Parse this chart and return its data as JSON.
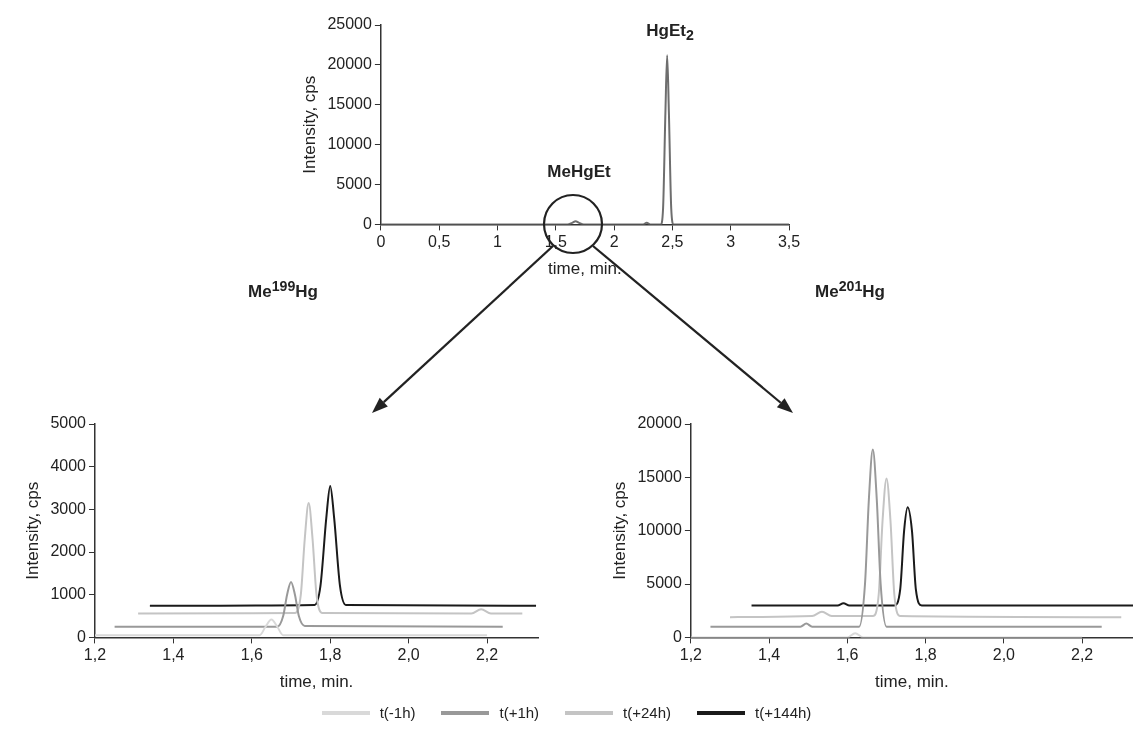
{
  "chart_data": [
    {
      "type": "line",
      "xlabel": "time, min.",
      "ylabel": "Intensity, cps",
      "xlim": [
        0,
        3.5
      ],
      "ylim": [
        0,
        25000
      ],
      "xticks": [
        0,
        {
          "value": 0.5,
          "label": "0,5"
        },
        1,
        {
          "value": 1.5,
          "label": "1,5"
        },
        2,
        {
          "value": 2.5,
          "label": "2,5"
        },
        3,
        {
          "value": 3.5,
          "label": "3,5"
        }
      ],
      "yticks": [
        0,
        5000,
        10000,
        15000,
        20000,
        25000
      ],
      "grid": false,
      "legend": false,
      "marker": "none",
      "line_style": "solid",
      "series": [
        {
          "color": "#6e6e6e",
          "x": [
            0,
            1.6,
            1.64,
            1.67,
            1.7,
            1.74,
            2.25,
            2.28,
            2.31,
            2.4,
            2.42,
            2.44,
            2.455,
            2.47,
            2.49,
            2.51,
            3.5
          ],
          "values": [
            0,
            0,
            200,
            400,
            200,
            0,
            0,
            200,
            0,
            0,
            2000,
            14000,
            21200,
            14000,
            2000,
            0,
            0
          ]
        }
      ],
      "annotations": [
        "HgEt$_{2}$",
        "MeHgEt",
        "Me$^{199}$Hg",
        "Me$^{201}$Hg"
      ]
    },
    {
      "type": "line",
      "xlabel": "time, min.",
      "ylabel": "Intensity, cps",
      "xlim": [
        1.2,
        2.33
      ],
      "ylim": [
        0,
        5000
      ],
      "xticks": [
        {
          "value": 1.2,
          "label": "1,2"
        },
        {
          "value": 1.4,
          "label": "1,4"
        },
        {
          "value": 1.6,
          "label": "1,6"
        },
        {
          "value": 1.8,
          "label": "1,8"
        },
        {
          "value": 2.0,
          "label": "2,0"
        },
        {
          "value": 2.2,
          "label": "2,2"
        }
      ],
      "yticks": [
        0,
        1000,
        2000,
        3000,
        4000,
        5000
      ],
      "grid": false,
      "legend": "bottom",
      "marker": "none",
      "line_style": "solid",
      "series": [
        {
          "name": "t(-1h)",
          "color": "#d9d9d9",
          "x": [
            1.2,
            1.62,
            1.635,
            1.65,
            1.665,
            1.68,
            2.2
          ],
          "values": [
            50,
            50,
            250,
            420,
            250,
            50,
            50
          ]
        },
        {
          "name": "t(+1h)",
          "color": "#999999",
          "x": [
            1.25,
            1.665,
            1.68,
            1.69,
            1.7,
            1.71,
            1.72,
            1.735,
            2.24
          ],
          "values": [
            250,
            250,
            500,
            1000,
            1300,
            1000,
            500,
            270,
            250
          ]
        },
        {
          "name": "t(+24h)",
          "color": "#c4c4c4",
          "x": [
            1.31,
            1.71,
            1.725,
            1.735,
            1.745,
            1.755,
            1.765,
            1.78,
            2.16,
            2.185,
            2.21,
            2.29
          ],
          "values": [
            560,
            570,
            1000,
            2300,
            3150,
            2300,
            1000,
            570,
            560,
            660,
            560,
            560
          ]
        },
        {
          "name": "t(+144h)",
          "color": "#1a1a1a",
          "x": [
            1.34,
            1.76,
            1.775,
            1.79,
            1.8,
            1.81,
            1.825,
            1.84,
            2.325
          ],
          "values": [
            740,
            760,
            1200,
            2800,
            3550,
            2800,
            1200,
            760,
            740
          ]
        }
      ]
    },
    {
      "type": "line",
      "xlabel": "time, min.",
      "ylabel": "Intensity, cps",
      "xlim": [
        1.2,
        2.33
      ],
      "ylim": [
        0,
        20000
      ],
      "xticks": [
        {
          "value": 1.2,
          "label": "1,2"
        },
        {
          "value": 1.4,
          "label": "1,4"
        },
        {
          "value": 1.6,
          "label": "1,6"
        },
        {
          "value": 1.8,
          "label": "1,8"
        },
        {
          "value": 2.0,
          "label": "2,0"
        },
        {
          "value": 2.2,
          "label": "2,2"
        }
      ],
      "yticks": [
        0,
        5000,
        10000,
        15000,
        20000
      ],
      "grid": false,
      "legend": false,
      "marker": "none",
      "line_style": "solid",
      "series": [
        {
          "color": "#d9d9d9",
          "x": [
            1.2,
            1.6,
            1.62,
            1.64,
            2.2
          ],
          "values": [
            0,
            0,
            400,
            0,
            0
          ]
        },
        {
          "color": "#999999",
          "x": [
            1.25,
            1.48,
            1.495,
            1.51,
            1.63,
            1.645,
            1.655,
            1.665,
            1.675,
            1.685,
            1.7,
            2.25
          ],
          "values": [
            1000,
            1000,
            1300,
            1000,
            1000,
            5000,
            13000,
            17600,
            13000,
            5000,
            1000,
            1000
          ]
        },
        {
          "color": "#c4c4c4",
          "x": [
            1.3,
            1.51,
            1.535,
            1.56,
            1.665,
            1.68,
            1.69,
            1.7,
            1.71,
            1.72,
            1.735,
            2.3
          ],
          "values": [
            1900,
            2000,
            2400,
            2000,
            2000,
            4000,
            11000,
            14900,
            11000,
            4000,
            2000,
            1900
          ]
        },
        {
          "color": "#1a1a1a",
          "x": [
            1.355,
            1.575,
            1.59,
            1.605,
            1.72,
            1.735,
            1.745,
            1.754,
            1.765,
            1.775,
            1.79,
            2.33
          ],
          "values": [
            3000,
            3000,
            3200,
            3000,
            3000,
            4500,
            10000,
            12200,
            10000,
            4500,
            3000,
            3000
          ]
        }
      ]
    }
  ]
}
